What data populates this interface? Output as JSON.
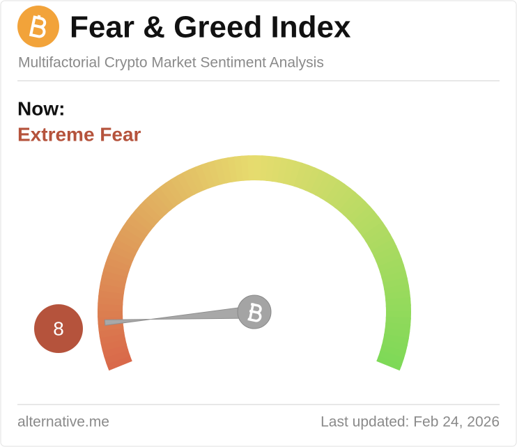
{
  "header": {
    "title": "Fear & Greed Index",
    "subtitle": "Multifactorial Crypto Market Sentiment Analysis"
  },
  "now": {
    "label": "Now:",
    "classification": "Extreme Fear"
  },
  "gauge": {
    "value": 8,
    "range": [
      0,
      100
    ]
  },
  "footer": {
    "source": "alternative.me",
    "updated": "Last updated: Feb 24, 2026"
  }
}
